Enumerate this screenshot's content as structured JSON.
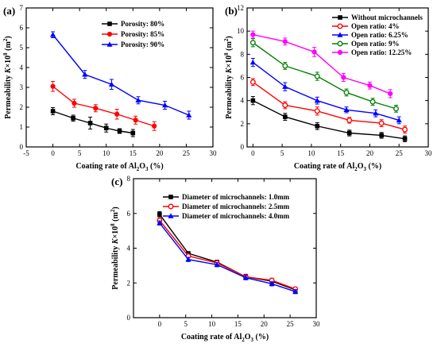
{
  "chart_data": [
    {
      "id": "a",
      "type": "line",
      "panel_label": "(a)",
      "xlabel": "Coating rate of Al2O3 (%)",
      "ylabel": "Permeability K×10^8 (m^2)",
      "xlim": [
        -5,
        30
      ],
      "ylim": [
        0,
        7
      ],
      "xticks": [
        -5,
        0,
        5,
        10,
        15,
        20,
        25,
        30
      ],
      "yticks": [
        0,
        1,
        2,
        3,
        4,
        5,
        6,
        7
      ],
      "legend": "top-right",
      "series": [
        {
          "name": "Porosity: 80%",
          "color": "#000000",
          "marker": "square",
          "x": [
            0,
            3.8,
            7,
            10,
            12.5,
            15
          ],
          "y": [
            1.8,
            1.45,
            1.2,
            0.95,
            0.8,
            0.7
          ],
          "err": [
            0.18,
            0.15,
            0.3,
            0.2,
            0.12,
            0.18
          ]
        },
        {
          "name": "Porosity: 85%",
          "color": "#ff0000",
          "marker": "circle",
          "x": [
            0,
            4,
            8,
            12,
            15.5,
            19
          ],
          "y": [
            3.05,
            2.2,
            1.95,
            1.65,
            1.35,
            1.05
          ],
          "err": [
            0.25,
            0.2,
            0.18,
            0.25,
            0.2,
            0.22
          ]
        },
        {
          "name": "Porosity: 90%",
          "color": "#0000ff",
          "marker": "triangle",
          "x": [
            0,
            6,
            11,
            16,
            21,
            25.5
          ],
          "y": [
            5.65,
            3.65,
            3.15,
            2.35,
            2.1,
            1.6
          ],
          "err": [
            0.15,
            0.2,
            0.25,
            0.18,
            0.2,
            0.2
          ]
        }
      ]
    },
    {
      "id": "b",
      "type": "line",
      "panel_label": "(b)",
      "xlabel": "Coating rate of Al2O3 (%)",
      "ylabel": "Permeability K×10^8 (m^2)",
      "xlim": [
        -1,
        30
      ],
      "ylim": [
        0,
        12
      ],
      "xticks": [
        0,
        5,
        10,
        15,
        20,
        25,
        30
      ],
      "yticks": [
        0,
        2,
        4,
        6,
        8,
        10,
        12
      ],
      "legend": "top-right",
      "series": [
        {
          "name": "Without microchannels",
          "color": "#000000",
          "marker": "square",
          "x": [
            0,
            5.5,
            11,
            16.5,
            22,
            26
          ],
          "y": [
            4.0,
            2.6,
            1.8,
            1.2,
            1.0,
            0.7
          ],
          "err": [
            0.35,
            0.3,
            0.3,
            0.25,
            0.25,
            0.25
          ]
        },
        {
          "name": "Open ratio:  4%",
          "color": "#ff0000",
          "marker": "circle-open",
          "x": [
            0,
            5.5,
            11,
            16.5,
            22,
            26
          ],
          "y": [
            5.6,
            3.6,
            3.1,
            2.3,
            2.05,
            1.5
          ],
          "err": [
            0.3,
            0.3,
            0.35,
            0.25,
            0.3,
            0.3
          ]
        },
        {
          "name": "Open ratio:  6.25%",
          "color": "#0000ff",
          "marker": "triangle",
          "x": [
            0,
            5.5,
            11,
            16,
            21,
            25
          ],
          "y": [
            7.3,
            5.2,
            4.0,
            3.2,
            2.9,
            2.3
          ],
          "err": [
            0.35,
            0.35,
            0.3,
            0.25,
            0.3,
            0.3
          ]
        },
        {
          "name": "Open ratio:  9%",
          "color": "#008000",
          "marker": "circle-open",
          "x": [
            0,
            5.5,
            11,
            16,
            20.5,
            24.5
          ],
          "y": [
            9.0,
            7.0,
            6.1,
            4.7,
            3.9,
            3.3
          ],
          "err": [
            0.35,
            0.3,
            0.35,
            0.3,
            0.3,
            0.3
          ]
        },
        {
          "name": "Open ratio:  12.25%",
          "color": "#ff00ff",
          "marker": "circle",
          "x": [
            0,
            5.5,
            10.5,
            15.5,
            20,
            23.5
          ],
          "y": [
            9.7,
            9.1,
            8.2,
            6.0,
            5.3,
            4.6
          ],
          "err": [
            0.3,
            0.3,
            0.4,
            0.35,
            0.3,
            0.35
          ]
        }
      ]
    },
    {
      "id": "c",
      "type": "line",
      "panel_label": "(c)",
      "xlabel": "Coating rate of Al2O3 (%)",
      "ylabel": "Permeability K×10^8 (m^2)",
      "xlim": [
        -5,
        30
      ],
      "ylim": [
        0,
        8
      ],
      "xticks": [
        0,
        5,
        10,
        15,
        20,
        25,
        30
      ],
      "yticks": [
        0,
        2,
        4,
        6,
        8
      ],
      "legend": "top-right",
      "series": [
        {
          "name": "Diameter of microchannels:  1.0mm",
          "color": "#000000",
          "marker": "square",
          "x": [
            0,
            5.5,
            11,
            16.5,
            21.5,
            26
          ],
          "y": [
            5.95,
            3.7,
            3.2,
            2.35,
            2.1,
            1.6
          ],
          "err": [
            0.15,
            0.1,
            0.1,
            0.15,
            0.12,
            0.12
          ]
        },
        {
          "name": "Diameter of microchannels:  2.5mm",
          "color": "#ff0000",
          "marker": "circle-open",
          "x": [
            0,
            5.5,
            11,
            16.5,
            21.5,
            26
          ],
          "y": [
            5.6,
            3.55,
            3.15,
            2.35,
            2.15,
            1.65
          ],
          "err": [
            0.12,
            0.1,
            0.1,
            0.12,
            0.12,
            0.1
          ]
        },
        {
          "name": "Diameter of microchannels:  4.0mm",
          "color": "#0000ff",
          "marker": "triangle",
          "x": [
            0,
            5.5,
            11,
            16.5,
            21.5,
            26
          ],
          "y": [
            5.45,
            3.35,
            3.05,
            2.3,
            1.95,
            1.5
          ],
          "err": [
            0.12,
            0.12,
            0.12,
            0.12,
            0.12,
            0.12
          ]
        }
      ]
    }
  ]
}
